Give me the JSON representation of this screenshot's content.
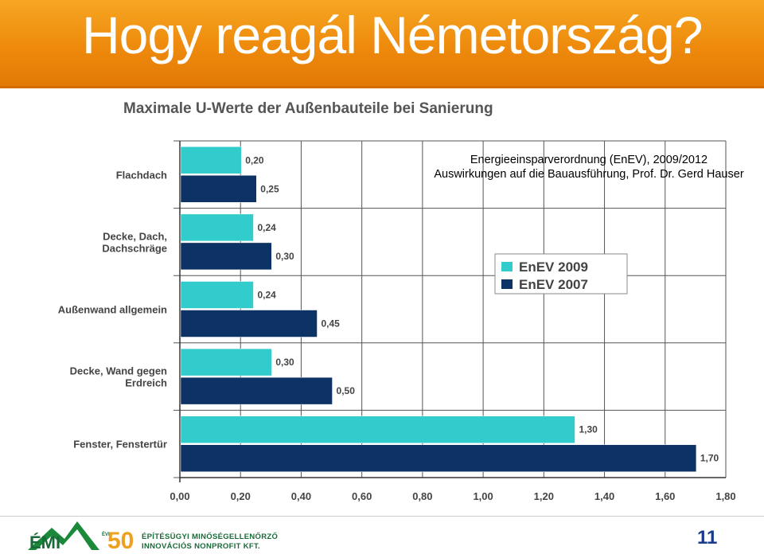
{
  "slide": {
    "title": "Hogy reagál Németország?",
    "source_line1": "Energieeinsparverordnung (EnEV), 2009/2012",
    "source_line2": "Auswirkungen auf die Bauausführung, Prof. Dr. Gerd Hauser",
    "page_number": "11"
  },
  "footer": {
    "logo_text": "ÉMI",
    "logo_years": "50",
    "logo_years_label": "ÉVE",
    "org_line1": "ÉPÍTÉSÜGYI MINŐSÉGELLENŐRZŐ",
    "org_line2": "INNOVÁCIÓS NONPROFIT KFT."
  },
  "chart_data": {
    "type": "bar",
    "orientation": "horizontal",
    "title": "Maximale U-Werte der Außenbauteile bei Sanierung",
    "categories": [
      "Flachdach",
      "Decke, Dach, Dachschräge",
      "Außenwand allgemein",
      "Decke, Wand gegen Erdreich",
      "Fenster, Fenstertür"
    ],
    "category_lines": [
      [
        "Flachdach"
      ],
      [
        "Decke, Dach,",
        "Dachschräge"
      ],
      [
        "Außenwand allgemein"
      ],
      [
        "Decke, Wand gegen",
        "Erdreich"
      ],
      [
        "Fenster, Fenstertür"
      ]
    ],
    "series": [
      {
        "name": "EnEV 2009",
        "color": "#33cccc",
        "values": [
          0.2,
          0.24,
          0.24,
          0.3,
          1.3
        ],
        "labels": [
          "0,20",
          "0,24",
          "0,24",
          "0,30",
          "1,30"
        ]
      },
      {
        "name": "EnEV 2007",
        "color": "#0d3366",
        "values": [
          0.25,
          0.3,
          0.45,
          0.5,
          1.7
        ],
        "labels": [
          "0,25",
          "0,30",
          "0,45",
          "0,50",
          "1,70"
        ]
      }
    ],
    "xlim": [
      0,
      1.8
    ],
    "xticks": [
      0,
      0.2,
      0.4,
      0.6,
      0.8,
      1.0,
      1.2,
      1.4,
      1.6,
      1.8
    ],
    "xtick_labels": [
      "0,00",
      "0,20",
      "0,40",
      "0,60",
      "0,80",
      "1,00",
      "1,20",
      "1,40",
      "1,60",
      "1,80"
    ],
    "grid": true,
    "legend": "center-right"
  }
}
